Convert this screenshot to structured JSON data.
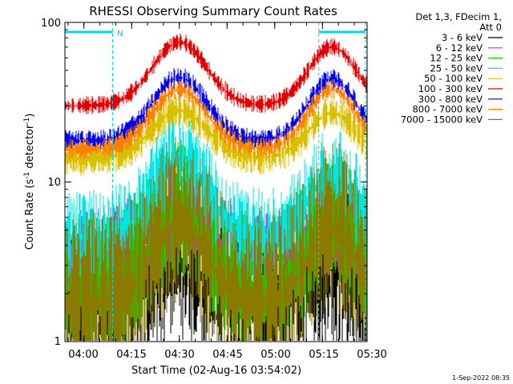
{
  "chart_data": {
    "type": "line",
    "title": "RHESSI Observing Summary Count Rates",
    "xlabel": "Start Time (02-Aug-16 03:54:02)",
    "ylabel": "Count Rate (s⁻¹ detector⁻¹)",
    "ylabel_main": "Count Rate (s",
    "ylabel_sup1": "-1",
    "ylabel_mid": " detector",
    "ylabel_sup2": "-1",
    "ylabel_end": ")",
    "y_scale": "log",
    "ylim": [
      1,
      100
    ],
    "xlim_minutes_after_start": [
      0,
      95
    ],
    "x_ticks": [
      {
        "label": "04:00",
        "minutes": 5.97
      },
      {
        "label": "04:15",
        "minutes": 20.97
      },
      {
        "label": "04:30",
        "minutes": 35.97
      },
      {
        "label": "04:45",
        "minutes": 50.97
      },
      {
        "label": "05:00",
        "minutes": 65.97
      },
      {
        "label": "05:15",
        "minutes": 80.97
      },
      {
        "label": "05:30",
        "minutes": 95.97
      }
    ],
    "y_ticks": [
      {
        "label": "1",
        "value": 1
      },
      {
        "label": "10",
        "value": 10
      },
      {
        "label": "100",
        "value": 100
      }
    ],
    "legend_header": [
      "Det 1,3, FDecim 1,",
      "Att 0"
    ],
    "legend_position": "right",
    "night_marker_label": "N",
    "bars": [
      {
        "from_minutes": 0,
        "to_minutes": 15
      },
      {
        "from_minutes": 79.8,
        "to_minutes": 94.5
      }
    ],
    "series": [
      {
        "name": "3 - 6 keV",
        "color": "#000000",
        "baseline": 1.7,
        "peak1": 3.0,
        "peak2": 2.8,
        "noise": 0.55
      },
      {
        "name": "6 - 12 keV",
        "color": "#cc33cc",
        "baseline": 3.2,
        "peak1": 6.5,
        "peak2": 5.5,
        "noise": 0.35
      },
      {
        "name": "12 - 25 keV",
        "color": "#00e000",
        "baseline": 2.2,
        "peak1": 6.5,
        "peak2": 5.8,
        "noise": 0.45
      },
      {
        "name": "25 - 50 keV",
        "color": "#00e5e5",
        "baseline": 4.5,
        "peak1": 14,
        "peak2": 11,
        "noise": 0.3
      },
      {
        "name": "50 - 100 keV",
        "color": "#d8c000",
        "baseline": 14,
        "peak1": 28,
        "peak2": 27,
        "noise": 0.12
      },
      {
        "name": "100 - 300 keV",
        "color": "#e00000",
        "baseline": 30,
        "peak1": 75,
        "peak2": 70,
        "noise": 0.06
      },
      {
        "name": "300 - 800 keV",
        "color": "#0000f0",
        "baseline": 18,
        "peak1": 45,
        "peak2": 44,
        "noise": 0.07
      },
      {
        "name": "800 - 7000 keV",
        "color": "#ff8000",
        "baseline": 16,
        "peak1": 38,
        "peak2": 38,
        "noise": 0.07
      },
      {
        "name": "7000 - 15000 keV",
        "color": "#8a7a00",
        "baseline": 1.7,
        "peak1": 5.5,
        "peak2": 5.0,
        "noise": 0.6
      }
    ]
  },
  "footer": {
    "timestamp": "1-Sep-2022 08:35"
  }
}
